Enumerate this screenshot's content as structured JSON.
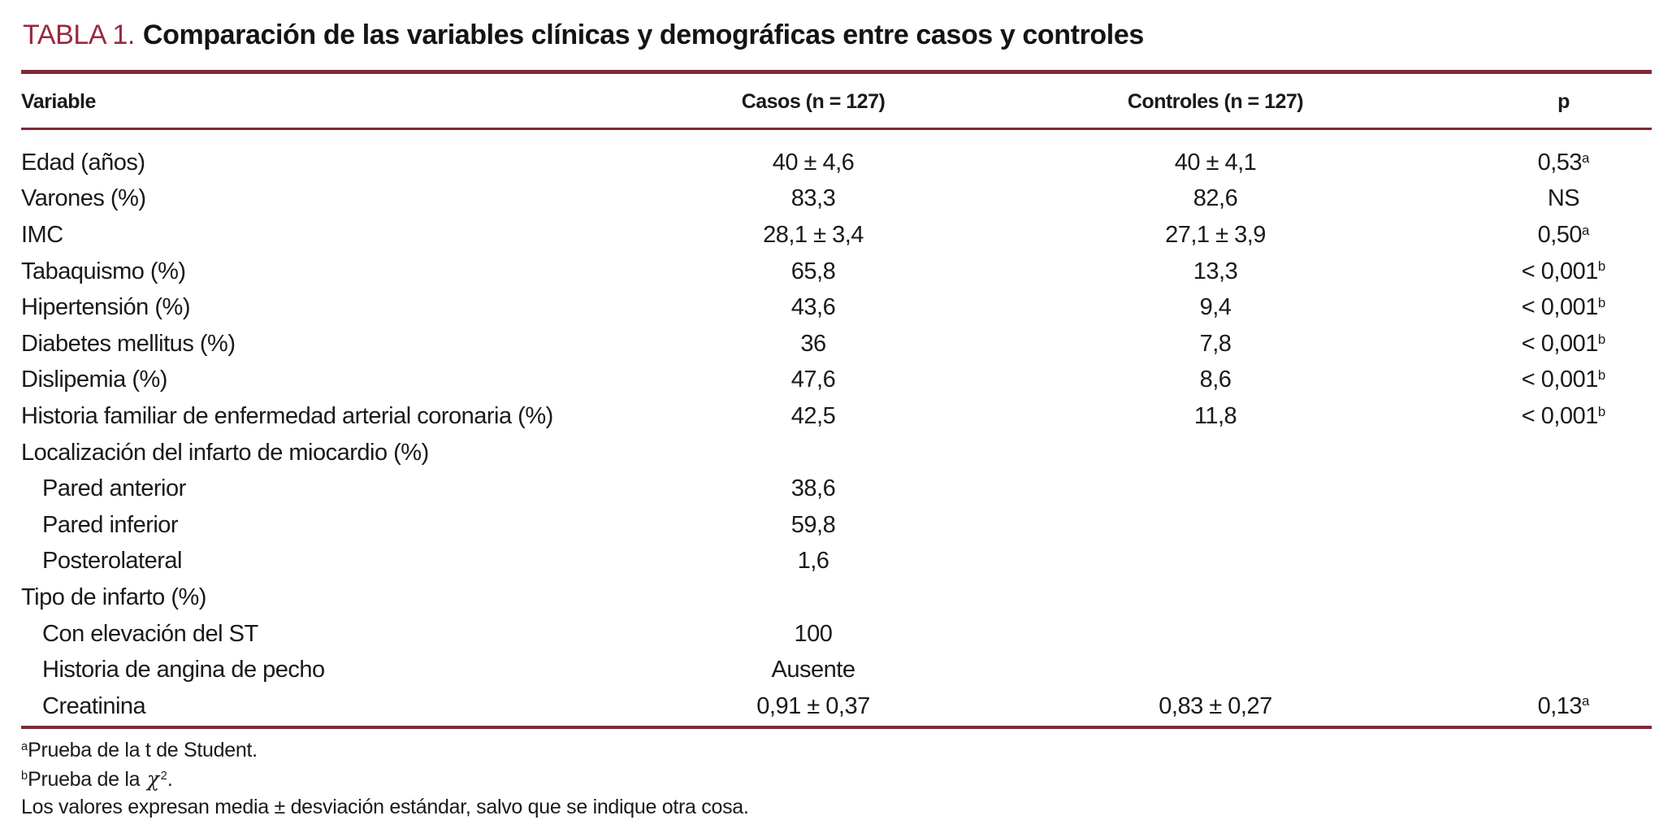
{
  "title": {
    "label": "TABLA 1.",
    "text": "Comparación de las variables clínicas y demográficas entre casos y controles"
  },
  "colors": {
    "accent_title": "#99293f",
    "rule": "#7e2a38",
    "text": "#1a1a1a",
    "background": "#ffffff"
  },
  "table": {
    "headers": [
      "Variable",
      "Casos (n = 127)",
      "Controles (n = 127)",
      "p"
    ],
    "rows": [
      {
        "variable": "Edad (años)",
        "casos": "40 ± 4,6",
        "controles": "40 ± 4,1",
        "p": "0,53",
        "p_sup": "a"
      },
      {
        "variable": "Varones (%)",
        "casos": "83,3",
        "controles": "82,6",
        "p": "NS",
        "p_sup": ""
      },
      {
        "variable": "IMC",
        "casos": "28,1 ± 3,4",
        "controles": "27,1 ± 3,9",
        "p": "0,50",
        "p_sup": "a"
      },
      {
        "variable": "Tabaquismo (%)",
        "casos": "65,8",
        "controles": "13,3",
        "p": "< 0,001",
        "p_sup": "b"
      },
      {
        "variable": "Hipertensión (%)",
        "casos": "43,6",
        "controles": "9,4",
        "p": "< 0,001",
        "p_sup": "b"
      },
      {
        "variable": "Diabetes mellitus (%)",
        "casos": "36",
        "controles": "7,8",
        "p": "< 0,001",
        "p_sup": "b"
      },
      {
        "variable": "Dislipemia (%)",
        "casos": "47,6",
        "controles": "8,6",
        "p": "< 0,001",
        "p_sup": "b"
      },
      {
        "variable": "Historia familiar de enfermedad arterial coronaria (%)",
        "casos": "42,5",
        "controles": "11,8",
        "p": "< 0,001",
        "p_sup": "b"
      },
      {
        "variable": "Localización del infarto de miocardio (%)",
        "casos": "",
        "controles": "",
        "p": "",
        "p_sup": ""
      },
      {
        "variable": "Pared anterior",
        "casos": "38,6",
        "controles": "",
        "p": "",
        "p_sup": ""
      },
      {
        "variable": "Pared inferior",
        "casos": "59,8",
        "controles": "",
        "p": "",
        "p_sup": ""
      },
      {
        "variable": "Posterolateral",
        "casos": "1,6",
        "controles": "",
        "p": "",
        "p_sup": ""
      },
      {
        "variable": "Tipo de infarto (%)",
        "casos": "",
        "controles": "",
        "p": "",
        "p_sup": ""
      },
      {
        "variable": "Con elevación del ST",
        "casos": "100",
        "controles": "",
        "p": "",
        "p_sup": ""
      },
      {
        "variable": "Historia de angina de pecho",
        "casos": "Ausente",
        "controles": "",
        "p": "",
        "p_sup": ""
      },
      {
        "variable": "Creatinina",
        "casos": "0,91 ± 0,37",
        "controles": "0,83 ± 0,27",
        "p": "0,13",
        "p_sup": "a"
      }
    ]
  },
  "footnotes": [
    {
      "sup": "a",
      "text": "Prueba de la t de Student."
    },
    {
      "sup": "b",
      "text": "Prueba de la ",
      "chi": "χ",
      "chi_sup": "2",
      "tail": "."
    },
    {
      "text": "Los valores expresan media ± desviación estándar, salvo que se indique otra cosa."
    }
  ]
}
